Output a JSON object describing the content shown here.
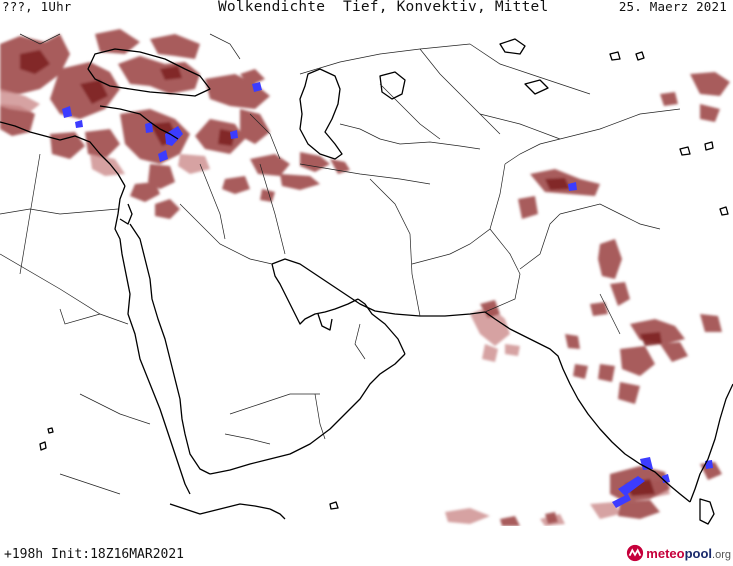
{
  "header": {
    "left": "???, 1Uhr",
    "title": "Wolkendichte  Tief, Konvektiv, Mittel",
    "date": "25. Maerz 2021"
  },
  "footer": {
    "run_info": "+198h Init:18Z16MAR2021"
  },
  "logo": {
    "part1": "meteo",
    "part2": "pool",
    "part3": ".org",
    "icon": "meteopool-logo-icon"
  },
  "map": {
    "region": "Middle East, Arabian Peninsula and Indian subcontinent",
    "legend_colors": {
      "cloud_low": "#e7c1c1",
      "cloud_mid": "#b46a6a",
      "cloud_high": "#8f3131",
      "convective": "#3c3cff"
    }
  }
}
